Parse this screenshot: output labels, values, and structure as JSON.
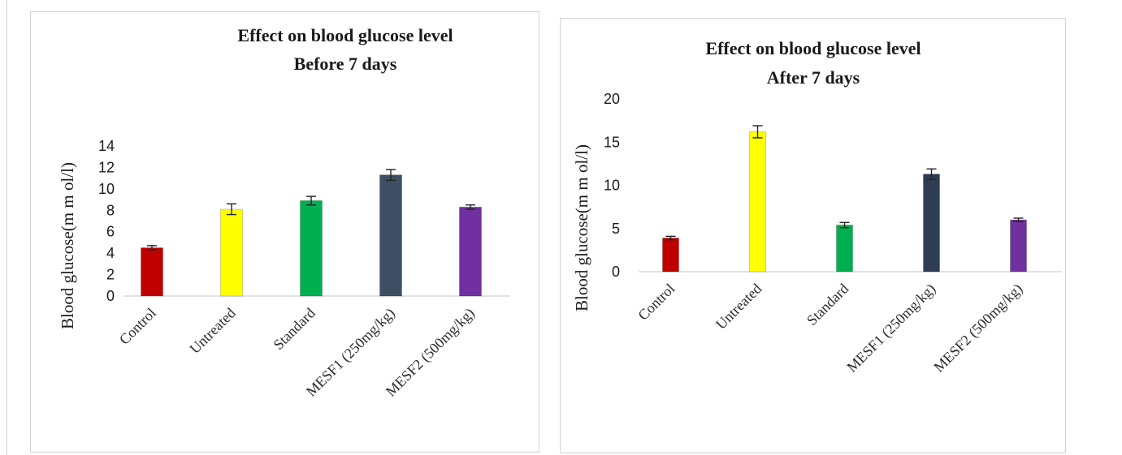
{
  "chart_data": [
    {
      "type": "bar",
      "title": [
        "Effect on blood glucose level",
        "Before 7 days"
      ],
      "ylabel": "Blood glucose(m m ol/l)",
      "xlabel": "",
      "categories": [
        "Control",
        "Untreated",
        "Standard",
        "MESF1 (250mg/kg)",
        "MESF2 (500mg/kg)"
      ],
      "values": [
        4.5,
        8.1,
        8.9,
        11.3,
        8.3
      ],
      "errors": [
        0.2,
        0.5,
        0.4,
        0.5,
        0.2
      ],
      "colors": [
        "#c00000",
        "#ffff00",
        "#00b050",
        "#3f4f63",
        "#7030a0"
      ],
      "yticks": [
        0,
        2,
        4,
        6,
        8,
        10,
        12,
        14
      ],
      "ylim": [
        0,
        14
      ],
      "grid": false,
      "legend": "none"
    },
    {
      "type": "bar",
      "title": [
        "Effect on blood glucose level",
        "After 7 days"
      ],
      "ylabel": "Blood glucose(m m ol/l)",
      "xlabel": "",
      "categories": [
        "Control",
        "Untreated",
        "Standard",
        "MESF1 (250mg/kg)",
        "MESF2 (500mg/kg)"
      ],
      "values": [
        3.9,
        16.2,
        5.4,
        11.3,
        6.0
      ],
      "errors": [
        0.2,
        0.7,
        0.3,
        0.6,
        0.2
      ],
      "colors": [
        "#c00000",
        "#ffff00",
        "#00b050",
        "#2e3d52",
        "#7030a0"
      ],
      "yticks": [
        0,
        5,
        10,
        15,
        20
      ],
      "ylim": [
        0,
        20
      ],
      "grid": false,
      "legend": "none"
    }
  ]
}
